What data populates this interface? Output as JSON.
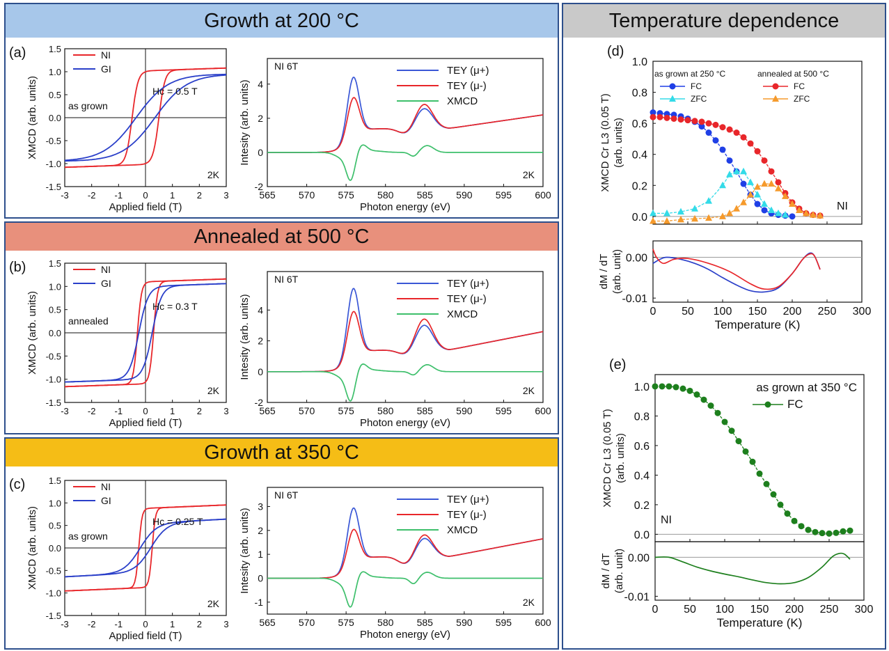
{
  "banners": {
    "growth200": "Growth at 200 °C",
    "annealed500": "Annealed at 500 °C",
    "growth350": "Growth at 350 °C",
    "tempdep": "Temperature dependence"
  },
  "colors": {
    "banner_blue": "#a7c7ea",
    "banner_salmon": "#e8907c",
    "banner_gold": "#f5bd16",
    "banner_gray": "#c9c9c9",
    "ni_red": "#e8262a",
    "gi_blue": "#2a3fc9",
    "xmcd_green": "#3dbf6b",
    "tey_plus": "#3a57d6",
    "fc_blue": "#1f3fe6",
    "fc_red": "#e8262a",
    "zfc_cyan": "#33dbe8",
    "zfc_orange": "#f59a2c",
    "fc_green": "#1d7f1d",
    "frame_blue": "#2d4f8c"
  },
  "chart_data": [
    {
      "id": "a-loop",
      "panel_label": "(a)",
      "type": "line",
      "xlabel": "Applied field (T)",
      "ylabel": "XMCD (arb. units)",
      "xlim": [
        -3,
        3
      ],
      "ylim": [
        -1.5,
        1.5
      ],
      "xticks": [
        "-3",
        "-2",
        "-1",
        "0",
        "1",
        "2",
        "3"
      ],
      "yticks": [
        "-1.5",
        "-1.0",
        "-0.5",
        "0.0",
        "0.5",
        "1.0",
        "1.5"
      ],
      "legend": [
        "NI",
        "GI"
      ],
      "annotations": [
        "as grown",
        "Hc = 0.5 T",
        "2K"
      ],
      "series": [
        {
          "name": "NI",
          "kind": "loop",
          "sat": 1.02,
          "hc": 0.5,
          "w": 0.22,
          "slope": 0.02
        },
        {
          "name": "GI",
          "kind": "loop",
          "sat": 0.95,
          "hc": 0.35,
          "w": 1.2,
          "slope": 0.0
        }
      ]
    },
    {
      "id": "a-spec",
      "type": "line",
      "xlabel": "Photon energy (eV)",
      "ylabel": "Intesity (arb. units)",
      "xlim": [
        565,
        600
      ],
      "ylim": [
        -2,
        5.5
      ],
      "xticks": [
        "565",
        "570",
        "575",
        "580",
        "585",
        "590",
        "595",
        "600"
      ],
      "yticks": [
        "-2",
        "0",
        "2",
        "4"
      ],
      "legend": [
        "TEY (μ+)",
        "TEY (μ-)",
        "XMCD"
      ],
      "annotations": [
        "NI   6T",
        "2K"
      ],
      "series": [
        {
          "name": "TEY (μ+)",
          "kind": "spec",
          "p1": 4.5,
          "p2": 2.45,
          "base": 1.4,
          "tail": 2.2
        },
        {
          "name": "TEY (μ-)",
          "kind": "spec",
          "p1": 3.3,
          "p2": 2.7,
          "base": 1.4,
          "tail": 2.2
        },
        {
          "name": "XMCD",
          "kind": "xmcd",
          "dip": -1.5,
          "bump": 0.4
        }
      ]
    },
    {
      "id": "b-loop",
      "panel_label": "(b)",
      "type": "line",
      "xlabel": "Applied field (T)",
      "ylabel": "XMCD (arb. units)",
      "xlim": [
        -3,
        3
      ],
      "ylim": [
        -1.5,
        1.5
      ],
      "xticks": [
        "-3",
        "-2",
        "-1",
        "0",
        "1",
        "2",
        "3"
      ],
      "yticks": [
        "-1.5",
        "-1.0",
        "-0.5",
        "0.0",
        "0.5",
        "1.0",
        "1.5"
      ],
      "legend": [
        "NI",
        "GI"
      ],
      "annotations": [
        "annealed",
        "Hc = 0.3 T",
        "2K"
      ],
      "series": [
        {
          "name": "NI",
          "kind": "loop",
          "sat": 1.1,
          "hc": 0.3,
          "w": 0.15,
          "slope": 0.02
        },
        {
          "name": "GI",
          "kind": "loop",
          "sat": 1.0,
          "hc": 0.25,
          "w": 0.35,
          "slope": 0.02
        }
      ]
    },
    {
      "id": "b-spec",
      "type": "line",
      "xlabel": "Photon energy (eV)",
      "ylabel": "Intesity (arb. units)",
      "xlim": [
        565,
        600
      ],
      "ylim": [
        -2,
        6.5
      ],
      "xticks": [
        "565",
        "570",
        "575",
        "580",
        "585",
        "590",
        "595",
        "600"
      ],
      "yticks": [
        "-2",
        "0",
        "2",
        "4"
      ],
      "legend": [
        "TEY (μ+)",
        "TEY (μ-)",
        "XMCD"
      ],
      "annotations": [
        "NI   6T",
        "2K"
      ],
      "series": [
        {
          "name": "TEY (μ+)",
          "kind": "spec",
          "p1": 5.5,
          "p2": 2.9,
          "base": 1.4,
          "tail": 2.6
        },
        {
          "name": "TEY (μ-)",
          "kind": "spec",
          "p1": 4.0,
          "p2": 3.3,
          "base": 1.4,
          "tail": 2.6
        },
        {
          "name": "XMCD",
          "kind": "xmcd",
          "dip": -1.75,
          "bump": 0.45
        }
      ]
    },
    {
      "id": "c-loop",
      "panel_label": "(c)",
      "type": "line",
      "xlabel": "Applied field (T)",
      "ylabel": "XMCD (arb. units)",
      "xlim": [
        -3,
        3
      ],
      "ylim": [
        -1.5,
        1.5
      ],
      "xticks": [
        "-3",
        "-2",
        "-1",
        "0",
        "1",
        "2",
        "3"
      ],
      "yticks": [
        "-1.5",
        "-1.0",
        "-0.5",
        "0.0",
        "0.5",
        "1.0",
        "1.5"
      ],
      "legend": [
        "NI",
        "GI"
      ],
      "annotations": [
        "as grown",
        "Hc = 0.25 T",
        "2K"
      ],
      "series": [
        {
          "name": "NI",
          "kind": "loop",
          "sat": 0.88,
          "hc": 0.25,
          "w": 0.12,
          "slope": 0.025
        },
        {
          "name": "GI",
          "kind": "loop",
          "sat": 0.55,
          "hc": 0.2,
          "w": 0.6,
          "slope": 0.03
        }
      ]
    },
    {
      "id": "c-spec",
      "type": "line",
      "xlabel": "Photon energy (eV)",
      "ylabel": "Intesity (arb. units)",
      "xlim": [
        565,
        600
      ],
      "ylim": [
        -1.5,
        3.8
      ],
      "xticks": [
        "565",
        "570",
        "575",
        "580",
        "585",
        "590",
        "595",
        "600"
      ],
      "yticks": [
        "-1",
        "0",
        "1",
        "2",
        "3"
      ],
      "legend": [
        "TEY (μ+)",
        "TEY (μ-)",
        "XMCD"
      ],
      "annotations": [
        "NI   6T",
        "2K"
      ],
      "series": [
        {
          "name": "TEY (μ+)",
          "kind": "spec",
          "p1": 3.0,
          "p2": 1.6,
          "base": 0.9,
          "tail": 1.65
        },
        {
          "name": "TEY (μ-)",
          "kind": "spec",
          "p1": 2.1,
          "p2": 1.75,
          "base": 0.9,
          "tail": 1.65
        },
        {
          "name": "XMCD",
          "kind": "xmcd",
          "dip": -1.1,
          "bump": 0.25
        }
      ]
    },
    {
      "id": "d-top",
      "panel_label": "(d)",
      "type": "scatter",
      "ylabel": "XMCD Cr L3 (0.05 T)",
      "ylabel2": "(arb. units)",
      "xlim": [
        0,
        300
      ],
      "ylim": [
        -0.05,
        1.0
      ],
      "yticks": [
        "0.0",
        "0.2",
        "0.4",
        "0.6",
        "0.8",
        "1.0"
      ],
      "legend_headers": [
        "as grown at 250 °C",
        "annealed at 500 °C"
      ],
      "legend": [
        "FC",
        "ZFC",
        "FC",
        "ZFC"
      ],
      "annotations": [
        "NI"
      ],
      "series": [
        {
          "name": "FC",
          "group": "as grown at 250 °C",
          "marker": "circle",
          "x": [
            0,
            10,
            20,
            30,
            40,
            50,
            60,
            70,
            80,
            90,
            100,
            110,
            120,
            130,
            140,
            150,
            160,
            170,
            180,
            190,
            200
          ],
          "y": [
            0.67,
            0.665,
            0.66,
            0.655,
            0.645,
            0.63,
            0.61,
            0.58,
            0.54,
            0.49,
            0.43,
            0.36,
            0.29,
            0.21,
            0.14,
            0.08,
            0.04,
            0.02,
            0.01,
            0.005,
            0.0
          ]
        },
        {
          "name": "ZFC",
          "group": "as grown at 250 °C",
          "marker": "triangle",
          "x": [
            0,
            20,
            40,
            60,
            80,
            100,
            110,
            120,
            130,
            140,
            150,
            160,
            170,
            180,
            190
          ],
          "y": [
            0.02,
            0.02,
            0.03,
            0.05,
            0.1,
            0.2,
            0.27,
            0.29,
            0.29,
            0.22,
            0.14,
            0.08,
            0.04,
            0.02,
            0.01
          ]
        },
        {
          "name": "FC",
          "group": "annealed at 500 °C",
          "marker": "circle",
          "x": [
            0,
            10,
            20,
            30,
            40,
            50,
            60,
            70,
            80,
            90,
            100,
            110,
            120,
            130,
            140,
            150,
            160,
            170,
            180,
            190,
            200,
            210,
            220,
            230,
            240
          ],
          "y": [
            0.64,
            0.64,
            0.635,
            0.63,
            0.625,
            0.62,
            0.615,
            0.61,
            0.6,
            0.59,
            0.575,
            0.56,
            0.54,
            0.51,
            0.47,
            0.42,
            0.36,
            0.29,
            0.22,
            0.15,
            0.09,
            0.05,
            0.02,
            0.01,
            0.005
          ]
        },
        {
          "name": "ZFC",
          "group": "annealed at 500 °C",
          "marker": "triangle",
          "x": [
            0,
            20,
            40,
            60,
            80,
            100,
            110,
            120,
            130,
            140,
            150,
            160,
            170,
            180,
            190,
            200,
            210,
            220,
            230,
            240
          ],
          "y": [
            -0.03,
            -0.03,
            -0.02,
            -0.015,
            -0.01,
            0.0,
            0.02,
            0.05,
            0.09,
            0.14,
            0.19,
            0.21,
            0.21,
            0.18,
            0.13,
            0.08,
            0.04,
            0.02,
            0.01,
            0.005
          ]
        }
      ]
    },
    {
      "id": "d-bottom",
      "type": "line",
      "xlabel": "Temperature (K)",
      "ylabel": "dM / dT",
      "ylabel2": "(arb. unit)",
      "xlim": [
        0,
        300
      ],
      "ylim": [
        -0.011,
        0.004
      ],
      "xticks": [
        "0",
        "50",
        "100",
        "150",
        "200",
        "250",
        "300"
      ],
      "yticks": [
        "0.00",
        "-0.01"
      ],
      "series": [
        {
          "name": "FC (as grown at 250 °C)",
          "x": [
            0,
            10,
            20,
            40,
            60,
            80,
            100,
            120,
            140,
            160,
            180,
            200,
            215,
            225,
            232,
            240
          ],
          "y": [
            -0.0015,
            -0.0005,
            0.0,
            -0.0005,
            -0.0015,
            -0.003,
            -0.005,
            -0.0068,
            -0.0082,
            -0.0085,
            -0.0075,
            -0.004,
            -0.0005,
            0.001,
            0.0003,
            -0.003
          ]
        },
        {
          "name": "FC (annealed at 500 °C)",
          "x": [
            0,
            5,
            15,
            30,
            50,
            80,
            110,
            140,
            160,
            180,
            200,
            215,
            225,
            232,
            240
          ],
          "y": [
            0.002,
            0.0,
            -0.0015,
            -0.0005,
            -0.0003,
            -0.0015,
            -0.0035,
            -0.0065,
            -0.0078,
            -0.0072,
            -0.004,
            -0.0005,
            0.0008,
            0.0003,
            -0.003
          ]
        }
      ]
    },
    {
      "id": "e-top",
      "panel_label": "(e)",
      "type": "scatter",
      "ylabel": "XMCD Cr L3 (0.05 T)",
      "ylabel2": "(arb. units)",
      "xlim": [
        0,
        300
      ],
      "ylim": [
        -0.05,
        1.08
      ],
      "yticks": [
        "0.0",
        "0.2",
        "0.4",
        "0.6",
        "0.8",
        "1.0"
      ],
      "legend_headers": [
        "as grown at 350 °C"
      ],
      "legend": [
        "FC"
      ],
      "annotations": [
        "NI"
      ],
      "series": [
        {
          "name": "FC",
          "marker": "circle",
          "x": [
            0,
            10,
            20,
            30,
            40,
            50,
            60,
            70,
            80,
            90,
            100,
            110,
            120,
            130,
            140,
            150,
            160,
            170,
            180,
            190,
            200,
            210,
            220,
            230,
            240,
            250,
            260,
            270,
            280
          ],
          "y": [
            1.0,
            1.0,
            1.0,
            0.995,
            0.985,
            0.97,
            0.945,
            0.91,
            0.87,
            0.82,
            0.76,
            0.7,
            0.63,
            0.56,
            0.49,
            0.41,
            0.34,
            0.27,
            0.2,
            0.14,
            0.09,
            0.055,
            0.03,
            0.015,
            0.008,
            0.005,
            0.01,
            0.02,
            0.025
          ]
        }
      ]
    },
    {
      "id": "e-bottom",
      "type": "line",
      "xlabel": "Temperature (K)",
      "ylabel": "dM / dT",
      "ylabel2": "(arb. unit)",
      "xlim": [
        0,
        300
      ],
      "ylim": [
        -0.011,
        0.004
      ],
      "xticks": [
        "0",
        "50",
        "100",
        "150",
        "200",
        "250",
        "300"
      ],
      "yticks": [
        "0.00",
        "-0.01"
      ],
      "series": [
        {
          "name": "FC (as grown at 350 °C)",
          "x": [
            0,
            20,
            40,
            60,
            80,
            100,
            120,
            140,
            160,
            180,
            200,
            220,
            240,
            255,
            265,
            272,
            280
          ],
          "y": [
            0.0,
            0.0,
            -0.0012,
            -0.0025,
            -0.0035,
            -0.0043,
            -0.005,
            -0.0058,
            -0.0065,
            -0.0068,
            -0.0065,
            -0.0052,
            -0.0025,
            0.0002,
            0.001,
            0.0008,
            -0.0005
          ]
        }
      ]
    }
  ]
}
